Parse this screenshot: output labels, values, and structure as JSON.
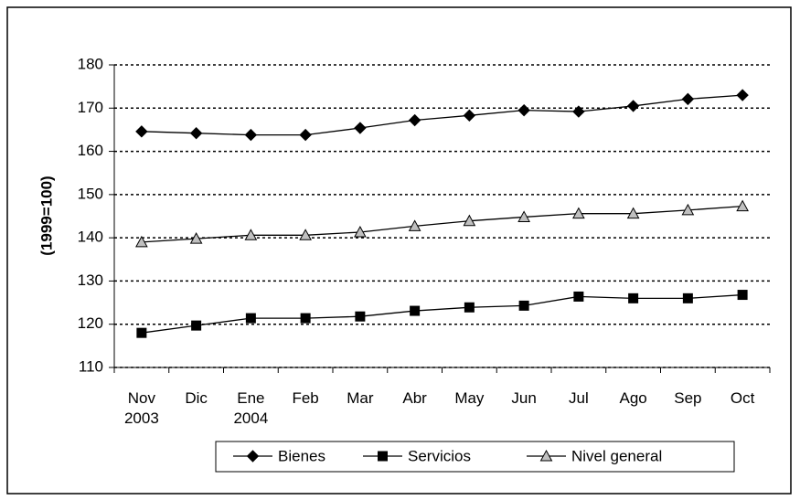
{
  "chart_data": {
    "type": "line",
    "y_label": "(1999=100)",
    "categories": [
      "Nov\n2003",
      "Dic",
      "Ene\n2004",
      "Feb",
      "Mar",
      "Abr",
      "May",
      "Jun",
      "Jul",
      "Ago",
      "Sep",
      "Oct"
    ],
    "series": [
      {
        "name": "Bienes",
        "color": "#000000",
        "marker": "diamond",
        "marker_fill": "#000000",
        "values": [
          164.6,
          164.2,
          163.8,
          163.8,
          165.4,
          167.2,
          168.3,
          169.5,
          169.2,
          170.5,
          172.1,
          173.0
        ]
      },
      {
        "name": "Servicios",
        "color": "#000000",
        "marker": "square",
        "marker_fill": "#000000",
        "values": [
          118.0,
          119.7,
          121.4,
          121.4,
          121.8,
          123.1,
          123.9,
          124.3,
          126.4,
          126.0,
          126.0,
          126.8
        ]
      },
      {
        "name": "Nivel general",
        "color": "#000000",
        "marker": "triangle",
        "marker_fill": "#c0c0c0",
        "values": [
          139.0,
          139.8,
          140.6,
          140.6,
          141.3,
          142.7,
          143.9,
          144.8,
          145.6,
          145.6,
          146.4,
          147.3
        ]
      }
    ],
    "ylim": [
      110,
      180
    ],
    "yticks": [
      110,
      120,
      130,
      140,
      150,
      160,
      170,
      180
    ],
    "grid": true,
    "legend": "bottom"
  }
}
